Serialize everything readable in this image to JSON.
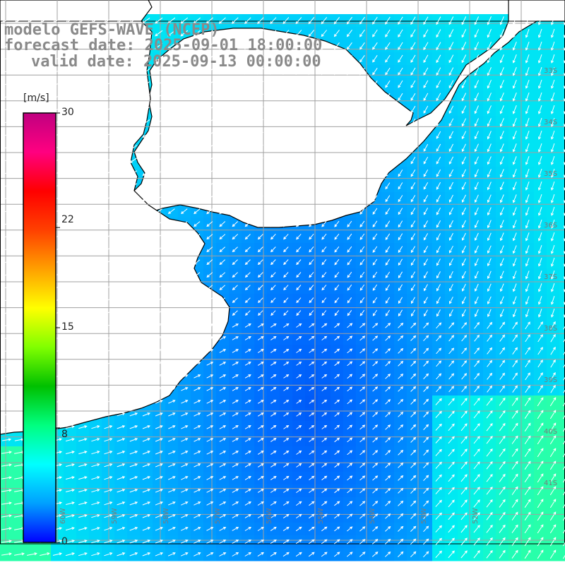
{
  "header": {
    "line1": "modelo GEFS-WAVE (NCEP)",
    "line2": "forecast date: 2025-09-01 18:00:00",
    "line3": "valid date: 2025-09-13 00:00:00"
  },
  "colorbar": {
    "unit": "[m/s]",
    "ticks": [
      "30",
      "22",
      "15",
      "8",
      "0"
    ],
    "tick_values": [
      30,
      22,
      15,
      8,
      0
    ],
    "min": 0,
    "max": 30,
    "colors": [
      "#0000ff",
      "#00a0ff",
      "#00ffff",
      "#00ff80",
      "#00c000",
      "#80ff00",
      "#ffff00",
      "#ffa000",
      "#ff4000",
      "#ff0000",
      "#ff0080",
      "#c00080"
    ]
  },
  "axes": {
    "lat_labels": [
      "33S",
      "34S",
      "35S",
      "36S",
      "37S",
      "38S",
      "39S",
      "40S",
      "41S"
    ],
    "lat_values": [
      -33,
      -34,
      -35,
      -36,
      -37,
      -38,
      -39,
      -40,
      -41
    ],
    "lon_labels": [
      "60W",
      "59W",
      "58W",
      "57W",
      "56W",
      "55W",
      "54W",
      "53W",
      "52W"
    ],
    "lon_values": [
      -60,
      -59,
      -58,
      -57,
      -56,
      -55,
      -54,
      -53,
      -52
    ]
  },
  "field": {
    "variable": "wind speed (m/s) with direction arrows",
    "land_color": "#ffffff",
    "grid_color": "#a0a0a0"
  }
}
